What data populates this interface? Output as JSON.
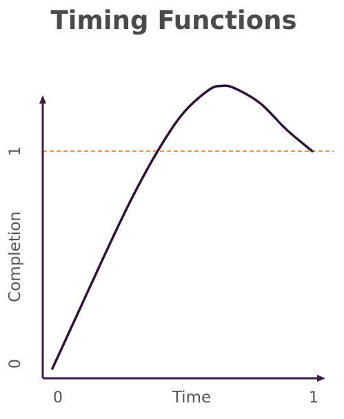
{
  "title": "Timing Functions",
  "colors": {
    "axis": "#3d1a47",
    "curve": "#2e1238",
    "reference_line": "#e8914a",
    "text": "#555555",
    "title": "#4a4a4a"
  },
  "chart_data": {
    "type": "line",
    "title": "Timing Functions",
    "xlabel": "Time",
    "ylabel": "Completion",
    "x_ticks": [
      "0",
      "1"
    ],
    "y_ticks": [
      "0",
      "1"
    ],
    "xlim": [
      0,
      1
    ],
    "ylim": [
      0,
      1.3
    ],
    "reference_line": {
      "y": 1,
      "style": "dashed"
    },
    "series": [
      {
        "x": [
          0,
          0.1,
          0.2,
          0.3,
          0.4,
          0.5,
          0.6,
          0.65,
          0.7,
          0.8,
          0.9,
          1.0
        ],
        "y": [
          0,
          0.26,
          0.52,
          0.77,
          0.99,
          1.17,
          1.28,
          1.3,
          1.29,
          1.22,
          1.1,
          1.0
        ]
      }
    ]
  }
}
